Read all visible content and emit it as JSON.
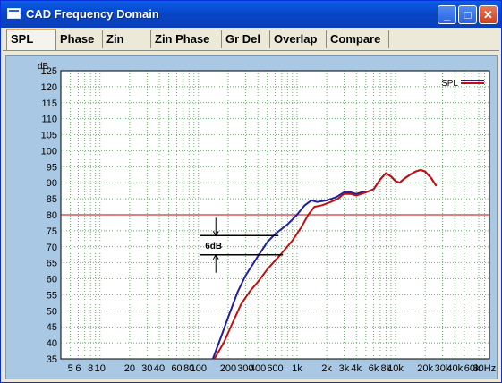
{
  "window": {
    "title": "CAD Frequency Domain"
  },
  "titlebar_buttons": {
    "minimize": "_",
    "maximize": "□",
    "close": "✕"
  },
  "tabs": [
    {
      "label": "SPL",
      "active": true
    },
    {
      "label": "Phase",
      "active": false
    },
    {
      "label": "Zin",
      "active": false
    },
    {
      "label": "Zin Phase",
      "active": false
    },
    {
      "label": "Gr Del",
      "active": false
    },
    {
      "label": "Overlap",
      "active": false
    },
    {
      "label": "Compare",
      "active": false
    }
  ],
  "chart_data": {
    "type": "line",
    "ylabel": "dB",
    "xscale": "log",
    "xlim": [
      4,
      90000
    ],
    "ylim": [
      35,
      125
    ],
    "y_ticks": [
      "125",
      "120",
      "115",
      "110",
      "105",
      "100",
      "95",
      "90",
      "85",
      "80",
      "75",
      "70",
      "65",
      "60",
      "55",
      "50",
      "45",
      "40",
      "35"
    ],
    "x_tick_labels": [
      {
        "v": 5,
        "t": "5"
      },
      {
        "v": 6,
        "t": "6"
      },
      {
        "v": 8,
        "t": "8"
      },
      {
        "v": 10,
        "t": "10"
      },
      {
        "v": 20,
        "t": "20"
      },
      {
        "v": 30,
        "t": "30"
      },
      {
        "v": 40,
        "t": "40"
      },
      {
        "v": 60,
        "t": "60"
      },
      {
        "v": 80,
        "t": "80"
      },
      {
        "v": 100,
        "t": "100"
      },
      {
        "v": 200,
        "t": "200"
      },
      {
        "v": 300,
        "t": "300"
      },
      {
        "v": 400,
        "t": "400"
      },
      {
        "v": 600,
        "t": "600"
      },
      {
        "v": 1000,
        "t": "1k"
      },
      {
        "v": 2000,
        "t": "2k"
      },
      {
        "v": 3000,
        "t": "3k"
      },
      {
        "v": 4000,
        "t": "4k"
      },
      {
        "v": 6000,
        "t": "6k"
      },
      {
        "v": 8000,
        "t": "8k"
      },
      {
        "v": 10000,
        "t": "10k"
      },
      {
        "v": 20000,
        "t": "20k"
      },
      {
        "v": 30000,
        "t": "30k"
      },
      {
        "v": 40000,
        "t": "40k"
      },
      {
        "v": 60000,
        "t": "60k"
      },
      {
        "v": 80000,
        "t": "80Hz"
      }
    ],
    "grid": true,
    "reference_line": {
      "y": 80,
      "color": "#c00000"
    },
    "annotation": {
      "label": "6dB",
      "at_x": 150,
      "y_top": 73.5,
      "y_bottom": 67.5
    },
    "legend": {
      "position": "top-right",
      "label": "SPL"
    },
    "series": [
      {
        "color": "#1f1fa0",
        "points": [
          [
            140,
            35
          ],
          [
            170,
            42
          ],
          [
            200,
            48
          ],
          [
            250,
            56
          ],
          [
            300,
            61
          ],
          [
            400,
            67
          ],
          [
            500,
            71.5
          ],
          [
            600,
            74
          ],
          [
            800,
            77
          ],
          [
            1000,
            80
          ],
          [
            1200,
            83
          ],
          [
            1400,
            84.5
          ],
          [
            1600,
            84
          ],
          [
            2000,
            84.5
          ],
          [
            2500,
            85.5
          ],
          [
            3000,
            87
          ],
          [
            3500,
            87
          ],
          [
            4000,
            86.5
          ],
          [
            4500,
            87
          ],
          [
            5000,
            87
          ],
          [
            6000,
            88
          ],
          [
            7000,
            91
          ],
          [
            8000,
            93
          ],
          [
            9000,
            92
          ],
          [
            10000,
            90.5
          ],
          [
            11000,
            90
          ],
          [
            12000,
            91
          ],
          [
            14000,
            92.5
          ],
          [
            16000,
            93.5
          ],
          [
            18000,
            94
          ],
          [
            20000,
            93.5
          ],
          [
            23000,
            91.5
          ],
          [
            26000,
            89
          ]
        ]
      },
      {
        "color": "#c01010",
        "points": [
          [
            145,
            35
          ],
          [
            180,
            40
          ],
          [
            220,
            46
          ],
          [
            270,
            52
          ],
          [
            330,
            56
          ],
          [
            400,
            59
          ],
          [
            500,
            63
          ],
          [
            700,
            68
          ],
          [
            900,
            72
          ],
          [
            1100,
            76
          ],
          [
            1300,
            80
          ],
          [
            1500,
            82.5
          ],
          [
            1800,
            83
          ],
          [
            2200,
            84
          ],
          [
            2600,
            85
          ],
          [
            3000,
            86.5
          ],
          [
            3500,
            86.5
          ],
          [
            4000,
            86
          ],
          [
            4500,
            86.5
          ],
          [
            5000,
            87
          ],
          [
            6000,
            88
          ],
          [
            7000,
            91
          ],
          [
            8000,
            93
          ],
          [
            9000,
            92
          ],
          [
            10000,
            90.5
          ],
          [
            11000,
            90
          ],
          [
            12000,
            91
          ],
          [
            14000,
            92.5
          ],
          [
            16000,
            93.5
          ],
          [
            18000,
            94
          ],
          [
            20000,
            93.5
          ],
          [
            23000,
            91.5
          ],
          [
            26000,
            89
          ]
        ]
      }
    ]
  }
}
